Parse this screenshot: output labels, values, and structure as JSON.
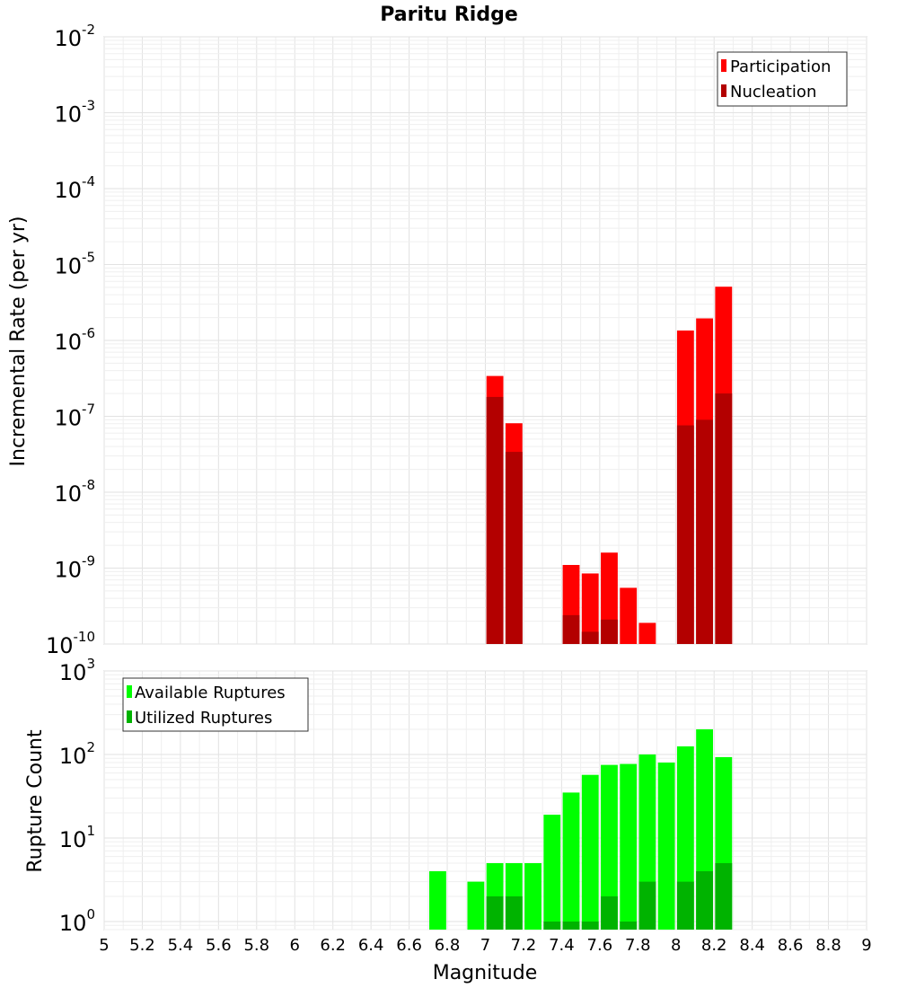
{
  "chart_data": [
    {
      "type": "bar",
      "title": "Paritu Ridge",
      "xlabel": "",
      "ylabel": "Incremental Rate (per yr)",
      "yscale": "log",
      "ylim": [
        1e-10,
        0.01
      ],
      "xlim": [
        5,
        9
      ],
      "grid": true,
      "legend_position": "top-right",
      "series": [
        {
          "name": "Participation",
          "color": "#ff0000",
          "x": [
            7.05,
            7.15,
            7.45,
            7.55,
            7.65,
            7.75,
            7.85,
            8.05,
            8.15,
            8.25
          ],
          "values": [
            3.4e-07,
            8.1e-08,
            1.1e-09,
            8.5e-10,
            1.6e-09,
            5.5e-10,
            1.9e-10,
            1.35e-06,
            1.95e-06,
            5.1e-06
          ]
        },
        {
          "name": "Nucleation",
          "color": "#b30000",
          "x": [
            7.05,
            7.15,
            7.45,
            7.55,
            7.65,
            7.75,
            7.85,
            8.05,
            8.15,
            8.25
          ],
          "values": [
            1.8e-07,
            3.4e-08,
            2.4e-10,
            1.45e-10,
            2.1e-10,
            0,
            0,
            7.6e-08,
            9e-08,
            2e-07
          ]
        }
      ]
    },
    {
      "type": "bar",
      "title": "",
      "xlabel": "Magnitude",
      "ylabel": "Rupture Count",
      "yscale": "log",
      "ylim": [
        0.8,
        1000
      ],
      "xlim": [
        5,
        9
      ],
      "grid": true,
      "legend_position": "top-left",
      "x_ticks": [
        "5",
        "5.2",
        "5.4",
        "5.6",
        "5.8",
        "6",
        "6.2",
        "6.4",
        "6.6",
        "6.8",
        "7",
        "7.2",
        "7.4",
        "7.6",
        "7.8",
        "8",
        "8.2",
        "8.4",
        "8.6",
        "8.8",
        "9"
      ],
      "series": [
        {
          "name": "Available Ruptures",
          "color": "#00ff00",
          "x": [
            6.75,
            6.95,
            7.05,
            7.15,
            7.25,
            7.35,
            7.45,
            7.55,
            7.65,
            7.75,
            7.85,
            7.95,
            8.05,
            8.15,
            8.25
          ],
          "values": [
            4,
            3,
            5,
            5,
            5,
            19,
            35,
            57,
            75,
            77,
            100,
            80,
            125,
            200,
            93
          ]
        },
        {
          "name": "Utilized Ruptures",
          "color": "#00b300",
          "x": [
            6.75,
            6.95,
            7.05,
            7.15,
            7.25,
            7.35,
            7.45,
            7.55,
            7.65,
            7.75,
            7.85,
            7.95,
            8.05,
            8.15,
            8.25
          ],
          "values": [
            0,
            0,
            2,
            2,
            0,
            1,
            1,
            1,
            2,
            1,
            3,
            0,
            3,
            4,
            5
          ]
        }
      ]
    }
  ],
  "yticks_top": [
    {
      "base": "10",
      "exp": "-2"
    },
    {
      "base": "10",
      "exp": "-3"
    },
    {
      "base": "10",
      "exp": "-4"
    },
    {
      "base": "10",
      "exp": "-5"
    },
    {
      "base": "10",
      "exp": "-6"
    },
    {
      "base": "10",
      "exp": "-7"
    },
    {
      "base": "10",
      "exp": "-8"
    },
    {
      "base": "10",
      "exp": "-9"
    },
    {
      "base": "10",
      "exp": "-10"
    }
  ],
  "yticks_bottom": [
    {
      "base": "10",
      "exp": "3"
    },
    {
      "base": "10",
      "exp": "2"
    },
    {
      "base": "10",
      "exp": "1"
    },
    {
      "base": "10",
      "exp": "0"
    }
  ]
}
